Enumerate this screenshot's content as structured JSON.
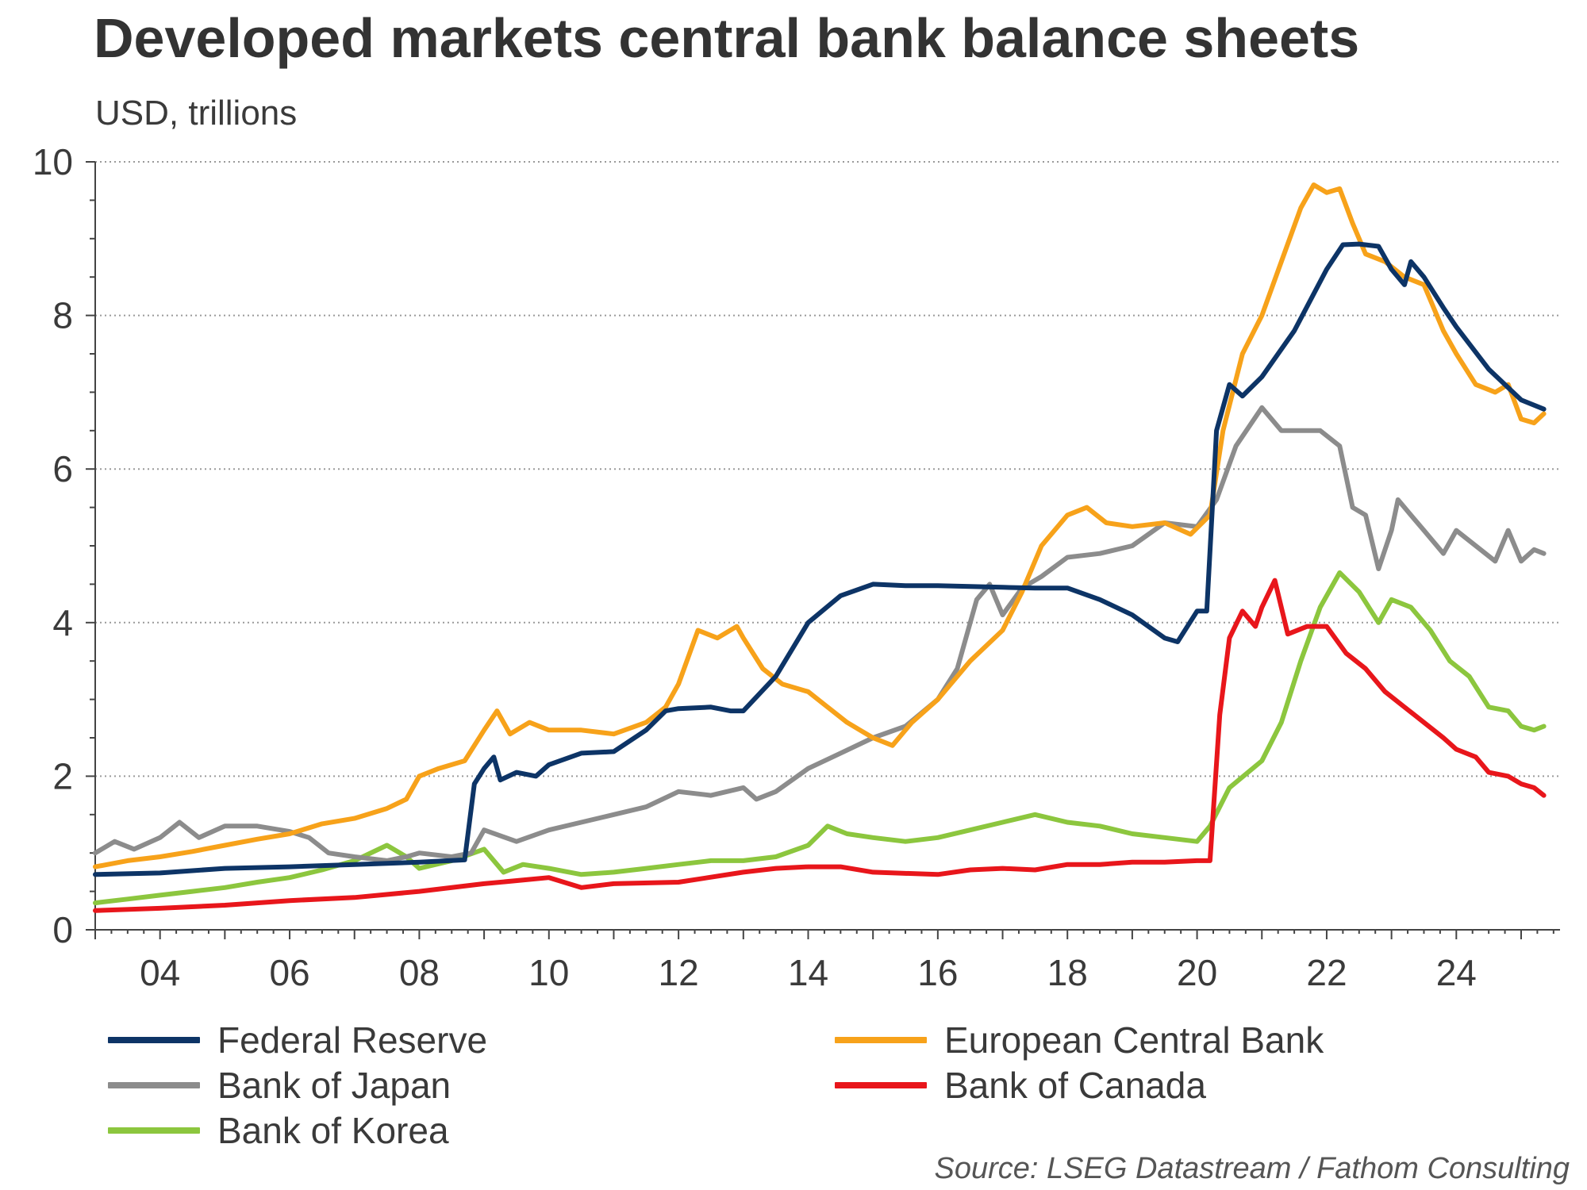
{
  "chart_data": {
    "type": "line",
    "title": "Developed markets central bank balance sheets",
    "subtitle": "USD, trillions",
    "xlabel": "",
    "ylabel": "",
    "source": "Source: LSEG Datastream / Fathom Consulting",
    "xlim": [
      2003.0,
      2025.6
    ],
    "ylim": [
      0,
      10
    ],
    "x_ticks": [
      2004,
      2006,
      2008,
      2010,
      2012,
      2014,
      2016,
      2018,
      2020,
      2022,
      2024
    ],
    "x_tick_labels": [
      "04",
      "06",
      "08",
      "10",
      "12",
      "14",
      "16",
      "18",
      "20",
      "22",
      "24"
    ],
    "y_ticks": [
      0,
      2,
      4,
      6,
      8,
      10
    ],
    "y_tick_labels": [
      "0",
      "2",
      "4",
      "6",
      "8",
      "10"
    ],
    "grid": "horizontal dotted",
    "legend_placement": "bottom",
    "series": [
      {
        "name": "Federal Reserve",
        "color": "#0d3466",
        "points": [
          [
            2003.0,
            0.72
          ],
          [
            2004.0,
            0.74
          ],
          [
            2005.0,
            0.8
          ],
          [
            2006.0,
            0.82
          ],
          [
            2007.0,
            0.85
          ],
          [
            2008.0,
            0.88
          ],
          [
            2008.7,
            0.91
          ],
          [
            2008.85,
            1.9
          ],
          [
            2009.0,
            2.1
          ],
          [
            2009.15,
            2.25
          ],
          [
            2009.25,
            1.95
          ],
          [
            2009.5,
            2.05
          ],
          [
            2009.8,
            2.0
          ],
          [
            2010.0,
            2.15
          ],
          [
            2010.5,
            2.3
          ],
          [
            2011.0,
            2.32
          ],
          [
            2011.5,
            2.6
          ],
          [
            2011.8,
            2.85
          ],
          [
            2012.0,
            2.88
          ],
          [
            2012.5,
            2.9
          ],
          [
            2012.8,
            2.85
          ],
          [
            2013.0,
            2.85
          ],
          [
            2013.5,
            3.3
          ],
          [
            2014.0,
            4.0
          ],
          [
            2014.5,
            4.35
          ],
          [
            2015.0,
            4.5
          ],
          [
            2015.5,
            4.48
          ],
          [
            2016.0,
            4.48
          ],
          [
            2016.5,
            4.47
          ],
          [
            2017.0,
            4.46
          ],
          [
            2017.5,
            4.45
          ],
          [
            2018.0,
            4.45
          ],
          [
            2018.5,
            4.3
          ],
          [
            2019.0,
            4.1
          ],
          [
            2019.5,
            3.8
          ],
          [
            2019.7,
            3.75
          ],
          [
            2020.0,
            4.15
          ],
          [
            2020.15,
            4.15
          ],
          [
            2020.3,
            6.5
          ],
          [
            2020.5,
            7.1
          ],
          [
            2020.7,
            6.95
          ],
          [
            2021.0,
            7.2
          ],
          [
            2021.5,
            7.8
          ],
          [
            2022.0,
            8.6
          ],
          [
            2022.25,
            8.92
          ],
          [
            2022.5,
            8.93
          ],
          [
            2022.8,
            8.9
          ],
          [
            2023.0,
            8.6
          ],
          [
            2023.2,
            8.4
          ],
          [
            2023.3,
            8.7
          ],
          [
            2023.5,
            8.5
          ],
          [
            2023.8,
            8.1
          ],
          [
            2024.0,
            7.85
          ],
          [
            2024.5,
            7.3
          ],
          [
            2025.0,
            6.9
          ],
          [
            2025.35,
            6.78
          ]
        ]
      },
      {
        "name": "European Central Bank",
        "color": "#f7a21a",
        "points": [
          [
            2003.0,
            0.82
          ],
          [
            2003.5,
            0.9
          ],
          [
            2004.0,
            0.95
          ],
          [
            2004.5,
            1.02
          ],
          [
            2005.0,
            1.1
          ],
          [
            2005.5,
            1.18
          ],
          [
            2006.0,
            1.25
          ],
          [
            2006.5,
            1.38
          ],
          [
            2007.0,
            1.45
          ],
          [
            2007.5,
            1.58
          ],
          [
            2007.8,
            1.7
          ],
          [
            2008.0,
            2.0
          ],
          [
            2008.3,
            2.1
          ],
          [
            2008.7,
            2.2
          ],
          [
            2009.0,
            2.6
          ],
          [
            2009.2,
            2.85
          ],
          [
            2009.4,
            2.55
          ],
          [
            2009.7,
            2.7
          ],
          [
            2010.0,
            2.6
          ],
          [
            2010.5,
            2.6
          ],
          [
            2011.0,
            2.55
          ],
          [
            2011.5,
            2.7
          ],
          [
            2011.8,
            2.9
          ],
          [
            2012.0,
            3.2
          ],
          [
            2012.3,
            3.9
          ],
          [
            2012.6,
            3.8
          ],
          [
            2012.9,
            3.95
          ],
          [
            2013.0,
            3.8
          ],
          [
            2013.3,
            3.4
          ],
          [
            2013.6,
            3.2
          ],
          [
            2014.0,
            3.1
          ],
          [
            2014.3,
            2.9
          ],
          [
            2014.6,
            2.7
          ],
          [
            2014.8,
            2.6
          ],
          [
            2015.0,
            2.5
          ],
          [
            2015.3,
            2.4
          ],
          [
            2015.6,
            2.7
          ],
          [
            2016.0,
            3.0
          ],
          [
            2016.5,
            3.5
          ],
          [
            2017.0,
            3.9
          ],
          [
            2017.3,
            4.4
          ],
          [
            2017.6,
            5.0
          ],
          [
            2018.0,
            5.4
          ],
          [
            2018.3,
            5.5
          ],
          [
            2018.6,
            5.3
          ],
          [
            2019.0,
            5.25
          ],
          [
            2019.5,
            5.3
          ],
          [
            2019.9,
            5.15
          ],
          [
            2020.2,
            5.4
          ],
          [
            2020.4,
            6.5
          ],
          [
            2020.7,
            7.5
          ],
          [
            2021.0,
            8.0
          ],
          [
            2021.3,
            8.7
          ],
          [
            2021.6,
            9.4
          ],
          [
            2021.8,
            9.7
          ],
          [
            2022.0,
            9.6
          ],
          [
            2022.2,
            9.65
          ],
          [
            2022.4,
            9.2
          ],
          [
            2022.6,
            8.8
          ],
          [
            2022.9,
            8.7
          ],
          [
            2023.2,
            8.5
          ],
          [
            2023.5,
            8.4
          ],
          [
            2023.8,
            7.8
          ],
          [
            2024.0,
            7.5
          ],
          [
            2024.3,
            7.1
          ],
          [
            2024.6,
            7.0
          ],
          [
            2024.8,
            7.1
          ],
          [
            2025.0,
            6.65
          ],
          [
            2025.2,
            6.6
          ],
          [
            2025.35,
            6.72
          ]
        ]
      },
      {
        "name": "Bank of Japan",
        "color": "#8c8c8c",
        "points": [
          [
            2003.0,
            1.0
          ],
          [
            2003.3,
            1.15
          ],
          [
            2003.6,
            1.05
          ],
          [
            2004.0,
            1.2
          ],
          [
            2004.3,
            1.4
          ],
          [
            2004.6,
            1.2
          ],
          [
            2005.0,
            1.35
          ],
          [
            2005.5,
            1.35
          ],
          [
            2006.0,
            1.28
          ],
          [
            2006.3,
            1.2
          ],
          [
            2006.6,
            1.0
          ],
          [
            2007.0,
            0.95
          ],
          [
            2007.5,
            0.9
          ],
          [
            2007.8,
            0.95
          ],
          [
            2008.0,
            1.0
          ],
          [
            2008.5,
            0.95
          ],
          [
            2008.8,
            1.0
          ],
          [
            2009.0,
            1.3
          ],
          [
            2009.5,
            1.15
          ],
          [
            2010.0,
            1.3
          ],
          [
            2010.5,
            1.4
          ],
          [
            2011.0,
            1.5
          ],
          [
            2011.5,
            1.6
          ],
          [
            2012.0,
            1.8
          ],
          [
            2012.5,
            1.75
          ],
          [
            2013.0,
            1.85
          ],
          [
            2013.2,
            1.7
          ],
          [
            2013.5,
            1.8
          ],
          [
            2014.0,
            2.1
          ],
          [
            2014.5,
            2.3
          ],
          [
            2015.0,
            2.5
          ],
          [
            2015.5,
            2.65
          ],
          [
            2016.0,
            3.0
          ],
          [
            2016.3,
            3.4
          ],
          [
            2016.6,
            4.3
          ],
          [
            2016.8,
            4.5
          ],
          [
            2017.0,
            4.1
          ],
          [
            2017.3,
            4.45
          ],
          [
            2017.6,
            4.6
          ],
          [
            2018.0,
            4.85
          ],
          [
            2018.5,
            4.9
          ],
          [
            2019.0,
            5.0
          ],
          [
            2019.5,
            5.3
          ],
          [
            2020.0,
            5.25
          ],
          [
            2020.3,
            5.6
          ],
          [
            2020.6,
            6.3
          ],
          [
            2021.0,
            6.8
          ],
          [
            2021.3,
            6.5
          ],
          [
            2021.6,
            6.5
          ],
          [
            2021.9,
            6.5
          ],
          [
            2022.2,
            6.3
          ],
          [
            2022.4,
            5.5
          ],
          [
            2022.6,
            5.4
          ],
          [
            2022.8,
            4.7
          ],
          [
            2023.0,
            5.2
          ],
          [
            2023.1,
            5.6
          ],
          [
            2023.3,
            5.4
          ],
          [
            2023.5,
            5.2
          ],
          [
            2023.8,
            4.9
          ],
          [
            2024.0,
            5.2
          ],
          [
            2024.3,
            5.0
          ],
          [
            2024.6,
            4.8
          ],
          [
            2024.8,
            5.2
          ],
          [
            2025.0,
            4.8
          ],
          [
            2025.2,
            4.95
          ],
          [
            2025.35,
            4.9
          ]
        ]
      },
      {
        "name": "Bank of Canada",
        "color": "#e8161b",
        "points": [
          [
            2003.0,
            0.25
          ],
          [
            2004.0,
            0.28
          ],
          [
            2005.0,
            0.32
          ],
          [
            2006.0,
            0.38
          ],
          [
            2007.0,
            0.42
          ],
          [
            2008.0,
            0.5
          ],
          [
            2009.0,
            0.6
          ],
          [
            2010.0,
            0.68
          ],
          [
            2010.5,
            0.55
          ],
          [
            2011.0,
            0.6
          ],
          [
            2012.0,
            0.62
          ],
          [
            2013.0,
            0.75
          ],
          [
            2013.5,
            0.8
          ],
          [
            2014.0,
            0.82
          ],
          [
            2014.5,
            0.82
          ],
          [
            2015.0,
            0.75
          ],
          [
            2016.0,
            0.72
          ],
          [
            2016.5,
            0.78
          ],
          [
            2017.0,
            0.8
          ],
          [
            2017.5,
            0.78
          ],
          [
            2018.0,
            0.85
          ],
          [
            2018.5,
            0.85
          ],
          [
            2019.0,
            0.88
          ],
          [
            2019.5,
            0.88
          ],
          [
            2020.0,
            0.9
          ],
          [
            2020.2,
            0.9
          ],
          [
            2020.35,
            2.8
          ],
          [
            2020.5,
            3.8
          ],
          [
            2020.7,
            4.15
          ],
          [
            2020.9,
            3.95
          ],
          [
            2021.0,
            4.2
          ],
          [
            2021.2,
            4.55
          ],
          [
            2021.4,
            3.85
          ],
          [
            2021.7,
            3.95
          ],
          [
            2022.0,
            3.95
          ],
          [
            2022.3,
            3.6
          ],
          [
            2022.6,
            3.4
          ],
          [
            2022.9,
            3.1
          ],
          [
            2023.2,
            2.9
          ],
          [
            2023.5,
            2.7
          ],
          [
            2023.8,
            2.5
          ],
          [
            2024.0,
            2.35
          ],
          [
            2024.3,
            2.25
          ],
          [
            2024.5,
            2.05
          ],
          [
            2024.8,
            2.0
          ],
          [
            2025.0,
            1.9
          ],
          [
            2025.2,
            1.85
          ],
          [
            2025.35,
            1.75
          ]
        ]
      },
      {
        "name": "Bank of Korea",
        "color": "#8cc63e",
        "points": [
          [
            2003.0,
            0.35
          ],
          [
            2003.5,
            0.4
          ],
          [
            2004.0,
            0.45
          ],
          [
            2004.5,
            0.5
          ],
          [
            2005.0,
            0.55
          ],
          [
            2005.5,
            0.62
          ],
          [
            2006.0,
            0.68
          ],
          [
            2006.5,
            0.78
          ],
          [
            2007.0,
            0.9
          ],
          [
            2007.5,
            1.1
          ],
          [
            2007.8,
            0.95
          ],
          [
            2008.0,
            0.8
          ],
          [
            2008.5,
            0.9
          ],
          [
            2009.0,
            1.05
          ],
          [
            2009.3,
            0.75
          ],
          [
            2009.6,
            0.85
          ],
          [
            2010.0,
            0.8
          ],
          [
            2010.5,
            0.72
          ],
          [
            2011.0,
            0.75
          ],
          [
            2011.5,
            0.8
          ],
          [
            2012.0,
            0.85
          ],
          [
            2012.5,
            0.9
          ],
          [
            2013.0,
            0.9
          ],
          [
            2013.5,
            0.95
          ],
          [
            2014.0,
            1.1
          ],
          [
            2014.3,
            1.35
          ],
          [
            2014.6,
            1.25
          ],
          [
            2015.0,
            1.2
          ],
          [
            2015.5,
            1.15
          ],
          [
            2016.0,
            1.2
          ],
          [
            2016.5,
            1.3
          ],
          [
            2017.0,
            1.4
          ],
          [
            2017.5,
            1.5
          ],
          [
            2018.0,
            1.4
          ],
          [
            2018.5,
            1.35
          ],
          [
            2019.0,
            1.25
          ],
          [
            2019.5,
            1.2
          ],
          [
            2020.0,
            1.15
          ],
          [
            2020.2,
            1.35
          ],
          [
            2020.5,
            1.85
          ],
          [
            2021.0,
            2.2
          ],
          [
            2021.3,
            2.7
          ],
          [
            2021.6,
            3.5
          ],
          [
            2021.9,
            4.2
          ],
          [
            2022.2,
            4.65
          ],
          [
            2022.5,
            4.4
          ],
          [
            2022.8,
            4.0
          ],
          [
            2023.0,
            4.3
          ],
          [
            2023.3,
            4.2
          ],
          [
            2023.6,
            3.9
          ],
          [
            2023.9,
            3.5
          ],
          [
            2024.2,
            3.3
          ],
          [
            2024.5,
            2.9
          ],
          [
            2024.8,
            2.85
          ],
          [
            2025.0,
            2.65
          ],
          [
            2025.2,
            2.6
          ],
          [
            2025.35,
            2.65
          ]
        ]
      }
    ]
  }
}
